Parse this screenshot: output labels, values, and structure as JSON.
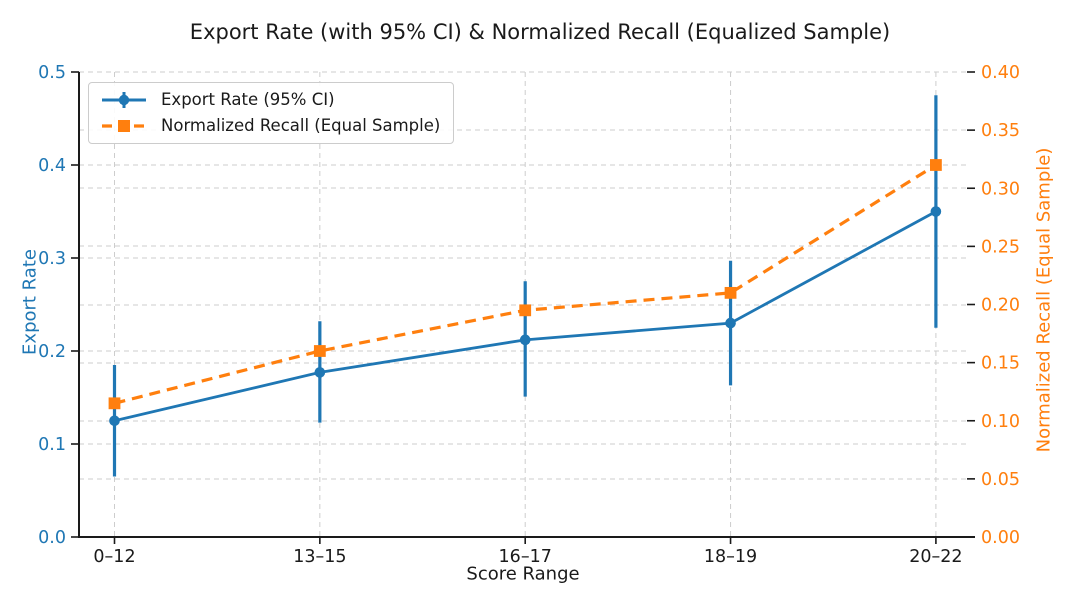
{
  "chart_data": {
    "type": "line",
    "title": "Export Rate (with 95% CI) & Normalized Recall (Equalized Sample)",
    "xlabel": "Score Range",
    "categories": [
      "0–12",
      "13–15",
      "16–17",
      "18–19",
      "20–22"
    ],
    "series": [
      {
        "name": "Export Rate (95% CI)",
        "axis": "left",
        "color": "#1f77b4",
        "line_style": "solid",
        "marker": "circle",
        "values": [
          0.125,
          0.177,
          0.212,
          0.23,
          0.35
        ],
        "ci_low": [
          0.065,
          0.123,
          0.151,
          0.163,
          0.225
        ],
        "ci_high": [
          0.185,
          0.232,
          0.275,
          0.297,
          0.475
        ]
      },
      {
        "name": "Normalized Recall (Equal Sample)",
        "axis": "right",
        "color": "#ff7f0e",
        "line_style": "dashed",
        "marker": "square",
        "values": [
          0.115,
          0.16,
          0.195,
          0.21,
          0.32
        ]
      }
    ],
    "left_axis": {
      "label": "Export Rate",
      "color": "#1f77b4",
      "min": 0.0,
      "max": 0.5,
      "ticks": [
        "0.0",
        "0.1",
        "0.2",
        "0.3",
        "0.4",
        "0.5"
      ]
    },
    "right_axis": {
      "label": "Normalized Recall (Equal Sample)",
      "color": "#ff7f0e",
      "min": 0.0,
      "max": 0.4,
      "ticks": [
        "0.00",
        "0.05",
        "0.10",
        "0.15",
        "0.20",
        "0.25",
        "0.30",
        "0.35",
        "0.40"
      ]
    },
    "x_axis_color": "#1a1a1a",
    "grid": true,
    "legend_position": "upper left"
  }
}
